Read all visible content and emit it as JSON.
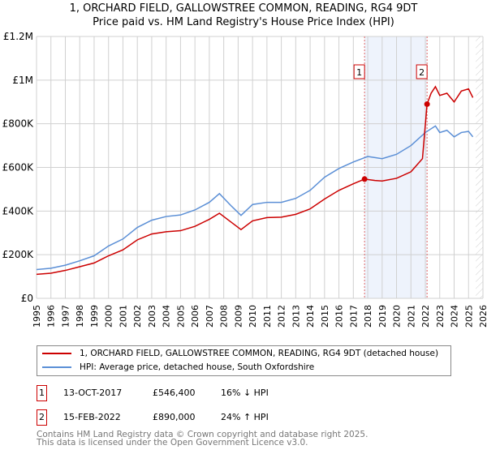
{
  "chart_data": {
    "type": "line",
    "title": "1, ORCHARD FIELD, GALLOWSTREE COMMON, READING, RG4 9DT",
    "subtitle": "Price paid vs. HM Land Registry's House Price Index (HPI)",
    "xlim": [
      1995,
      2026
    ],
    "ylim": [
      0,
      1200000
    ],
    "y_ticks": [
      {
        "v": 0,
        "label": "£0"
      },
      {
        "v": 200000,
        "label": "£200K"
      },
      {
        "v": 400000,
        "label": "£400K"
      },
      {
        "v": 600000,
        "label": "£600K"
      },
      {
        "v": 800000,
        "label": "£800K"
      },
      {
        "v": 1000000,
        "label": "£1M"
      },
      {
        "v": 1200000,
        "label": "£1.2M"
      }
    ],
    "x_ticks": [
      "1995",
      "1996",
      "1997",
      "1998",
      "1999",
      "2000",
      "2001",
      "2002",
      "2003",
      "2004",
      "2005",
      "2006",
      "2007",
      "2008",
      "2009",
      "2010",
      "2011",
      "2012",
      "2013",
      "2014",
      "2015",
      "2016",
      "2017",
      "2018",
      "2019",
      "2020",
      "2021",
      "2022",
      "2023",
      "2024",
      "2025",
      "2026"
    ],
    "series": [
      {
        "name": "1, ORCHARD FIELD, GALLOWSTREE COMMON, READING, RG4 9DT (detached house)",
        "color": "#cc0000",
        "x": [
          1995,
          1996,
          1997,
          1998,
          1999,
          2000,
          2001,
          2002,
          2003,
          2004,
          2005,
          2006,
          2007,
          2007.7,
          2008.5,
          2009.2,
          2010,
          2011,
          2012,
          2013,
          2014,
          2015,
          2016,
          2017,
          2017.78,
          2018.5,
          2019,
          2020,
          2021,
          2021.8,
          2022.12,
          2022.4,
          2022.7,
          2023,
          2023.5,
          2024,
          2024.5,
          2025,
          2025.3
        ],
        "y": [
          110000,
          115000,
          128000,
          145000,
          162000,
          195000,
          222000,
          268000,
          295000,
          305000,
          310000,
          330000,
          362000,
          390000,
          350000,
          315000,
          355000,
          370000,
          372000,
          385000,
          410000,
          455000,
          495000,
          525000,
          546400,
          540000,
          538000,
          550000,
          580000,
          640000,
          890000,
          940000,
          970000,
          930000,
          940000,
          900000,
          950000,
          960000,
          920000
        ]
      },
      {
        "name": "HPI: Average price, detached house, South Oxfordshire",
        "color": "#5b8fd6",
        "x": [
          1995,
          1996,
          1997,
          1998,
          1999,
          2000,
          2001,
          2002,
          2003,
          2004,
          2005,
          2006,
          2007,
          2007.7,
          2008.5,
          2009.2,
          2010,
          2011,
          2012,
          2013,
          2014,
          2015,
          2016,
          2017,
          2018,
          2019,
          2020,
          2021,
          2022,
          2022.7,
          2023,
          2023.5,
          2024,
          2024.5,
          2025,
          2025.3
        ],
        "y": [
          132000,
          138000,
          152000,
          172000,
          195000,
          240000,
          272000,
          325000,
          358000,
          375000,
          382000,
          405000,
          440000,
          480000,
          425000,
          380000,
          430000,
          440000,
          440000,
          458000,
          495000,
          555000,
          595000,
          625000,
          650000,
          640000,
          660000,
          700000,
          760000,
          790000,
          760000,
          770000,
          740000,
          760000,
          765000,
          740000
        ]
      }
    ],
    "annotations": [
      {
        "label": "1",
        "x": 2017.78,
        "y": 546400
      },
      {
        "label": "2",
        "x": 2022.12,
        "y": 890000
      }
    ],
    "shaded_range": [
      2017.78,
      2022.12
    ],
    "hatched_from": 2025.5
  },
  "legend": {
    "red": "1, ORCHARD FIELD, GALLOWSTREE COMMON, READING, RG4 9DT (detached house)",
    "blue": "HPI: Average price, detached house, South Oxfordshire"
  },
  "sales": [
    {
      "n": "1",
      "date": "13-OCT-2017",
      "price": "£546,400",
      "hpi": "16% ↓ HPI"
    },
    {
      "n": "2",
      "date": "15-FEB-2022",
      "price": "£890,000",
      "hpi": "24% ↑ HPI"
    }
  ],
  "footer": {
    "l1": "Contains HM Land Registry data © Crown copyright and database right 2025.",
    "l2": "This data is licensed under the Open Government Licence v3.0."
  }
}
